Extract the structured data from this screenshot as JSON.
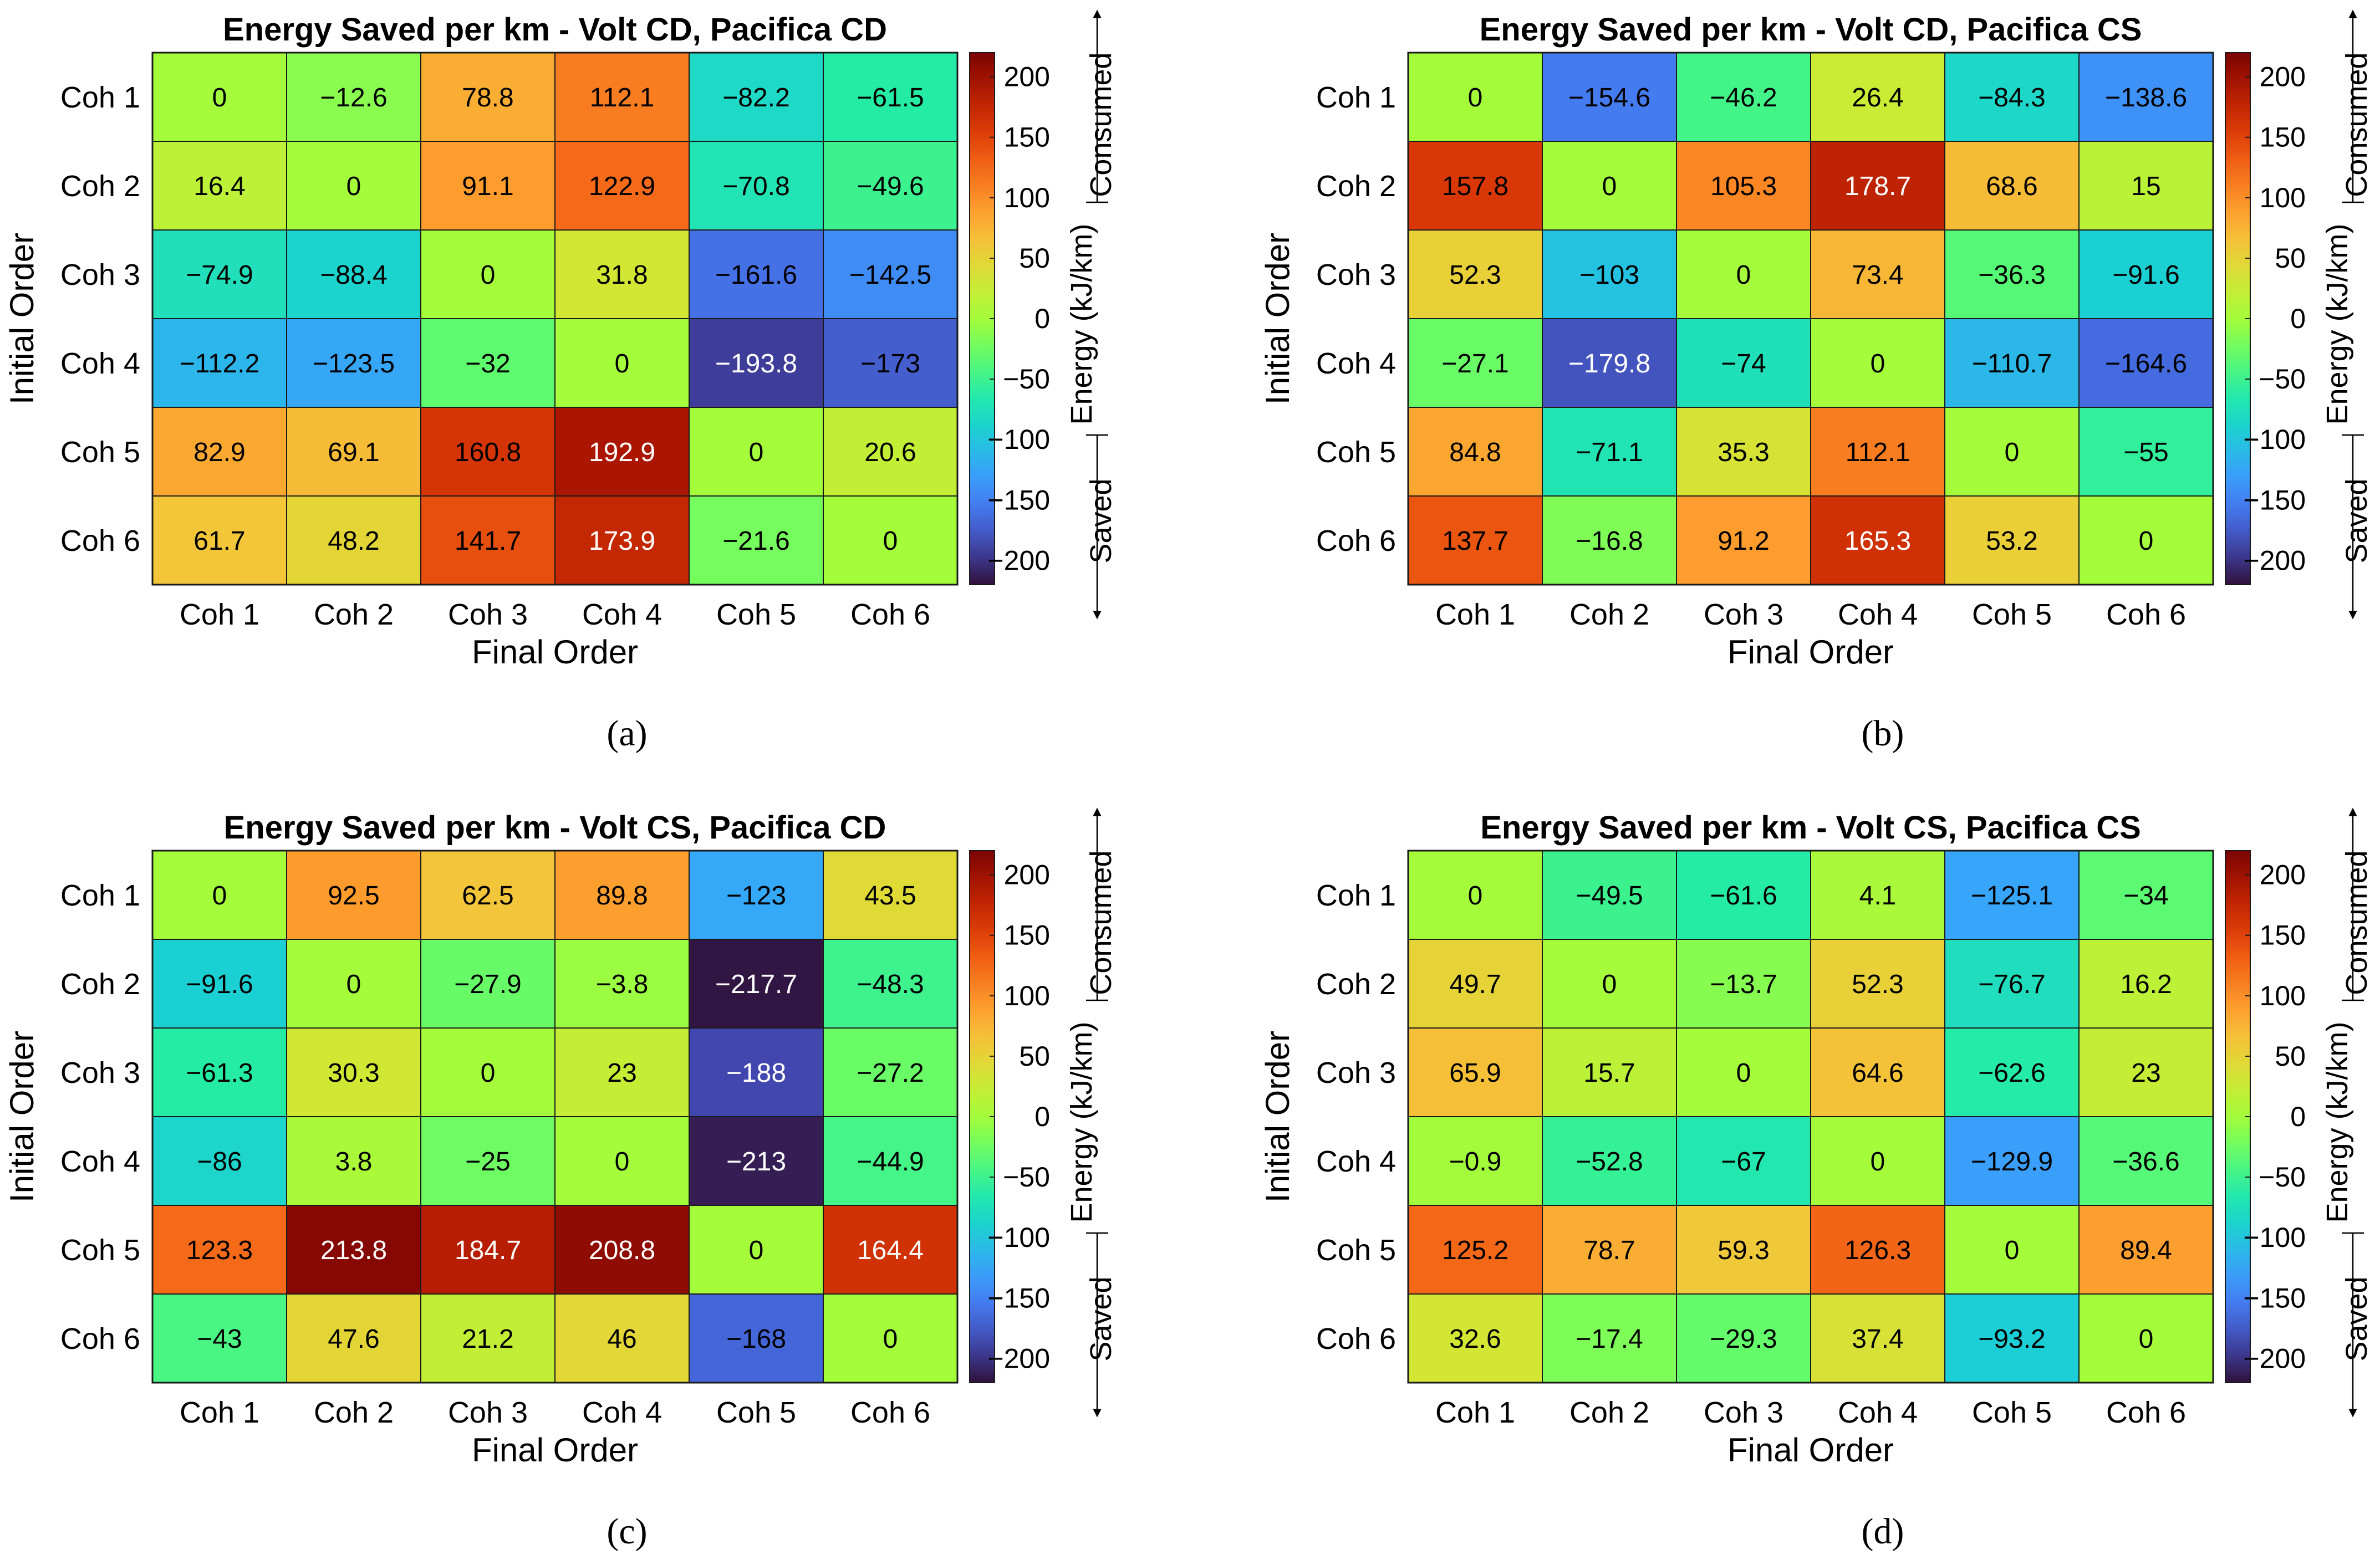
{
  "chart_data": [
    {
      "type": "heatmap",
      "panel": "(a)",
      "title": "Energy Saved per km - Volt CD, Pacifica CD",
      "xlabel": "Final Order",
      "ylabel": "Initial Order",
      "x_categories": [
        "Coh 1",
        "Coh 2",
        "Coh 3",
        "Coh 4",
        "Coh 5",
        "Coh 6"
      ],
      "y_categories": [
        "Coh 1",
        "Coh 2",
        "Coh 3",
        "Coh 4",
        "Coh 5",
        "Coh 6"
      ],
      "values": [
        [
          0,
          -12.6,
          78.8,
          112.1,
          -82.2,
          -61.5
        ],
        [
          16.4,
          0,
          91.1,
          122.9,
          -70.8,
          -49.6
        ],
        [
          -74.9,
          -88.4,
          0,
          31.8,
          -161.6,
          -142.5
        ],
        [
          -112.2,
          -123.5,
          -32,
          0,
          -193.8,
          -173
        ],
        [
          82.9,
          69.1,
          160.8,
          192.9,
          0,
          20.6
        ],
        [
          61.7,
          48.2,
          141.7,
          173.9,
          -21.6,
          0
        ]
      ],
      "colorbar": {
        "label": "Energy (kJ/km)",
        "range": [
          -220,
          220
        ],
        "ticks": [
          200,
          150,
          100,
          50,
          0,
          -50,
          -100,
          -150,
          -200
        ],
        "top_label": "Consumed",
        "bottom_label": "Saved"
      }
    },
    {
      "type": "heatmap",
      "panel": "(b)",
      "title": "Energy Saved per km - Volt CD, Pacifica CS",
      "xlabel": "Final Order",
      "ylabel": "Initial Order",
      "x_categories": [
        "Coh 1",
        "Coh 2",
        "Coh 3",
        "Coh 4",
        "Coh 5",
        "Coh 6"
      ],
      "y_categories": [
        "Coh 1",
        "Coh 2",
        "Coh 3",
        "Coh 4",
        "Coh 5",
        "Coh 6"
      ],
      "values": [
        [
          0,
          -154.6,
          -46.2,
          26.4,
          -84.3,
          -138.6
        ],
        [
          157.8,
          0,
          105.3,
          178.7,
          68.6,
          15
        ],
        [
          52.3,
          -103,
          0,
          73.4,
          -36.3,
          -91.6
        ],
        [
          -27.1,
          -179.8,
          -74,
          0,
          -110.7,
          -164.6
        ],
        [
          84.8,
          -71.1,
          35.3,
          112.1,
          0,
          -55
        ],
        [
          137.7,
          -16.8,
          91.2,
          165.3,
          53.2,
          0
        ]
      ],
      "colorbar": {
        "label": "Energy (kJ/km)",
        "range": [
          -220,
          220
        ],
        "ticks": [
          200,
          150,
          100,
          50,
          0,
          -50,
          -100,
          -150,
          -200
        ],
        "top_label": "Consumed",
        "bottom_label": "Saved"
      }
    },
    {
      "type": "heatmap",
      "panel": "(c)",
      "title": "Energy Saved per km - Volt CS, Pacifica CD",
      "xlabel": "Final Order",
      "ylabel": "Initial Order",
      "x_categories": [
        "Coh 1",
        "Coh 2",
        "Coh 3",
        "Coh 4",
        "Coh 5",
        "Coh 6"
      ],
      "y_categories": [
        "Coh 1",
        "Coh 2",
        "Coh 3",
        "Coh 4",
        "Coh 5",
        "Coh 6"
      ],
      "values": [
        [
          0,
          92.5,
          62.5,
          89.8,
          -123,
          43.5
        ],
        [
          -91.6,
          0,
          -27.9,
          -3.8,
          -217.7,
          -48.3
        ],
        [
          -61.3,
          30.3,
          0,
          23,
          -188,
          -27.2
        ],
        [
          -86,
          3.8,
          -25,
          0,
          -213,
          -44.9
        ],
        [
          123.3,
          213.8,
          184.7,
          208.8,
          0,
          164.4
        ],
        [
          -43,
          47.6,
          21.2,
          46,
          -168,
          0
        ]
      ],
      "colorbar": {
        "label": "Energy (kJ/km)",
        "range": [
          -220,
          220
        ],
        "ticks": [
          200,
          150,
          100,
          50,
          0,
          -50,
          -100,
          -150,
          -200
        ],
        "top_label": "Consumed",
        "bottom_label": "Saved"
      }
    },
    {
      "type": "heatmap",
      "panel": "(d)",
      "title": "Energy Saved per km - Volt CS, Pacifica CS",
      "xlabel": "Final Order",
      "ylabel": "Initial Order",
      "x_categories": [
        "Coh 1",
        "Coh 2",
        "Coh 3",
        "Coh 4",
        "Coh 5",
        "Coh 6"
      ],
      "y_categories": [
        "Coh 1",
        "Coh 2",
        "Coh 3",
        "Coh 4",
        "Coh 5",
        "Coh 6"
      ],
      "values": [
        [
          0,
          -49.5,
          -61.6,
          4.1,
          -125.1,
          -34
        ],
        [
          49.7,
          0,
          -13.7,
          52.3,
          -76.7,
          16.2
        ],
        [
          65.9,
          15.7,
          0,
          64.6,
          -62.6,
          23
        ],
        [
          -0.9,
          -52.8,
          -67,
          0,
          -129.9,
          -36.6
        ],
        [
          125.2,
          78.7,
          59.3,
          126.3,
          0,
          89.4
        ],
        [
          32.6,
          -17.4,
          -29.3,
          37.4,
          -93.2,
          0
        ]
      ],
      "colorbar": {
        "label": "Energy (kJ/km)",
        "range": [
          -220,
          220
        ],
        "ticks": [
          200,
          150,
          100,
          50,
          0,
          -50,
          -100,
          -150,
          -200
        ],
        "top_label": "Consumed",
        "bottom_label": "Saved"
      }
    }
  ],
  "colormap": "turbo"
}
